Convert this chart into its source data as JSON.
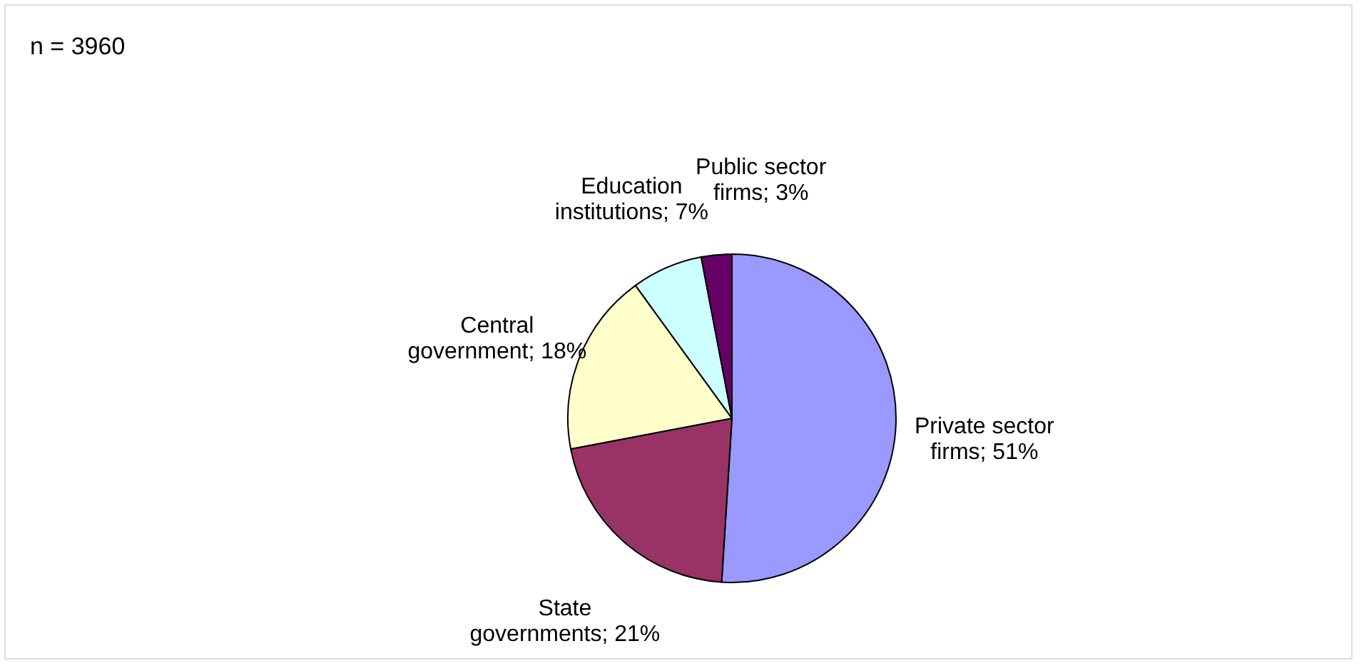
{
  "chart_data": {
    "type": "pie",
    "categories": [
      "Private sector firms",
      "State governments",
      "Central government",
      "Education institutions",
      "Public sector firms"
    ],
    "values": [
      51,
      21,
      18,
      7,
      3
    ],
    "value_labels": [
      "51%",
      "21%",
      "18%",
      "7%",
      "3%"
    ],
    "colors": [
      "#9999ff",
      "#993366",
      "#ffffcc",
      "#ccffff",
      "#660066"
    ],
    "annotations": [
      "n = 3960"
    ],
    "legend": false
  }
}
